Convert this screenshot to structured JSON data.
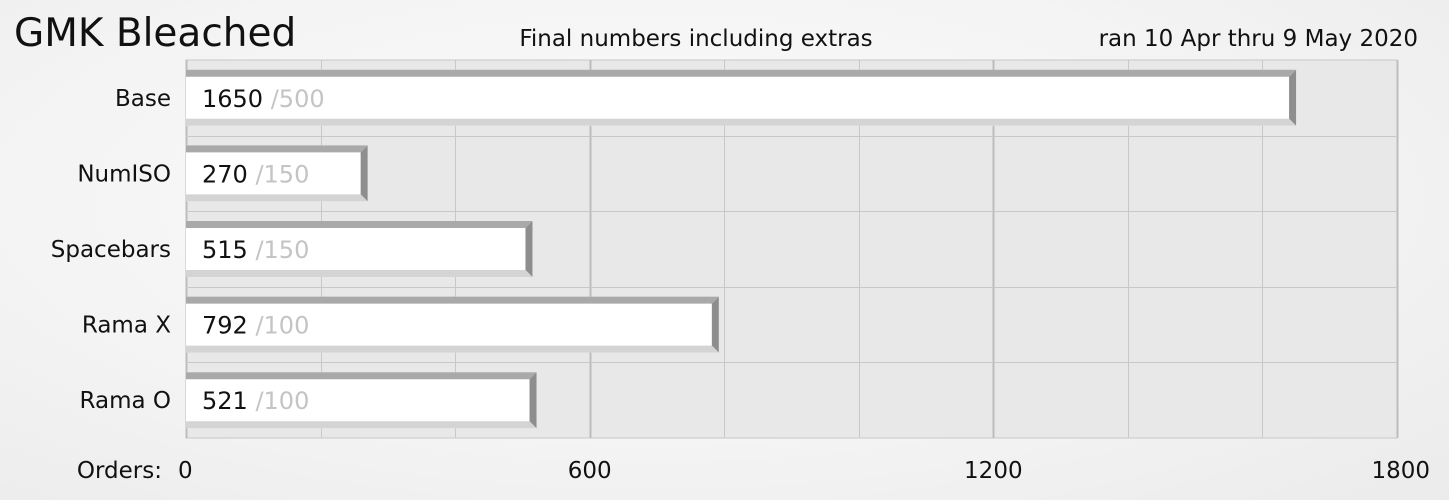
{
  "chart_data": {
    "type": "bar",
    "orientation": "horizontal",
    "title": "GMK Bleached",
    "subtitle": "Final numbers including extras",
    "annotation": "ran 10 Apr thru 9 May 2020",
    "xlabel": "Orders:",
    "categories": [
      "Base",
      "NumISO",
      "Spacebars",
      "Rama X",
      "Rama O"
    ],
    "values": [
      1650,
      270,
      515,
      792,
      521
    ],
    "minimums": [
      500,
      150,
      150,
      100,
      100
    ],
    "minimum_prefix": "/",
    "xlim": [
      0,
      1800
    ],
    "x_ticks": [
      0,
      600,
      1200,
      1800
    ],
    "x_gridlines": [
      0,
      200,
      400,
      600,
      800,
      1000,
      1200,
      1400,
      1600,
      1800
    ],
    "grid": true,
    "legend": "none",
    "colors": {
      "bar_face": "#ffffff",
      "bar_top": "#a9a9a9",
      "bar_right": "#8e8e8e",
      "bar_bottom": "#d4d4d4",
      "grid": "#c8c8c8",
      "plot_bg": "#e8e8e8",
      "value_text": "#111111",
      "minimum_text": "#c4c4c4"
    }
  }
}
